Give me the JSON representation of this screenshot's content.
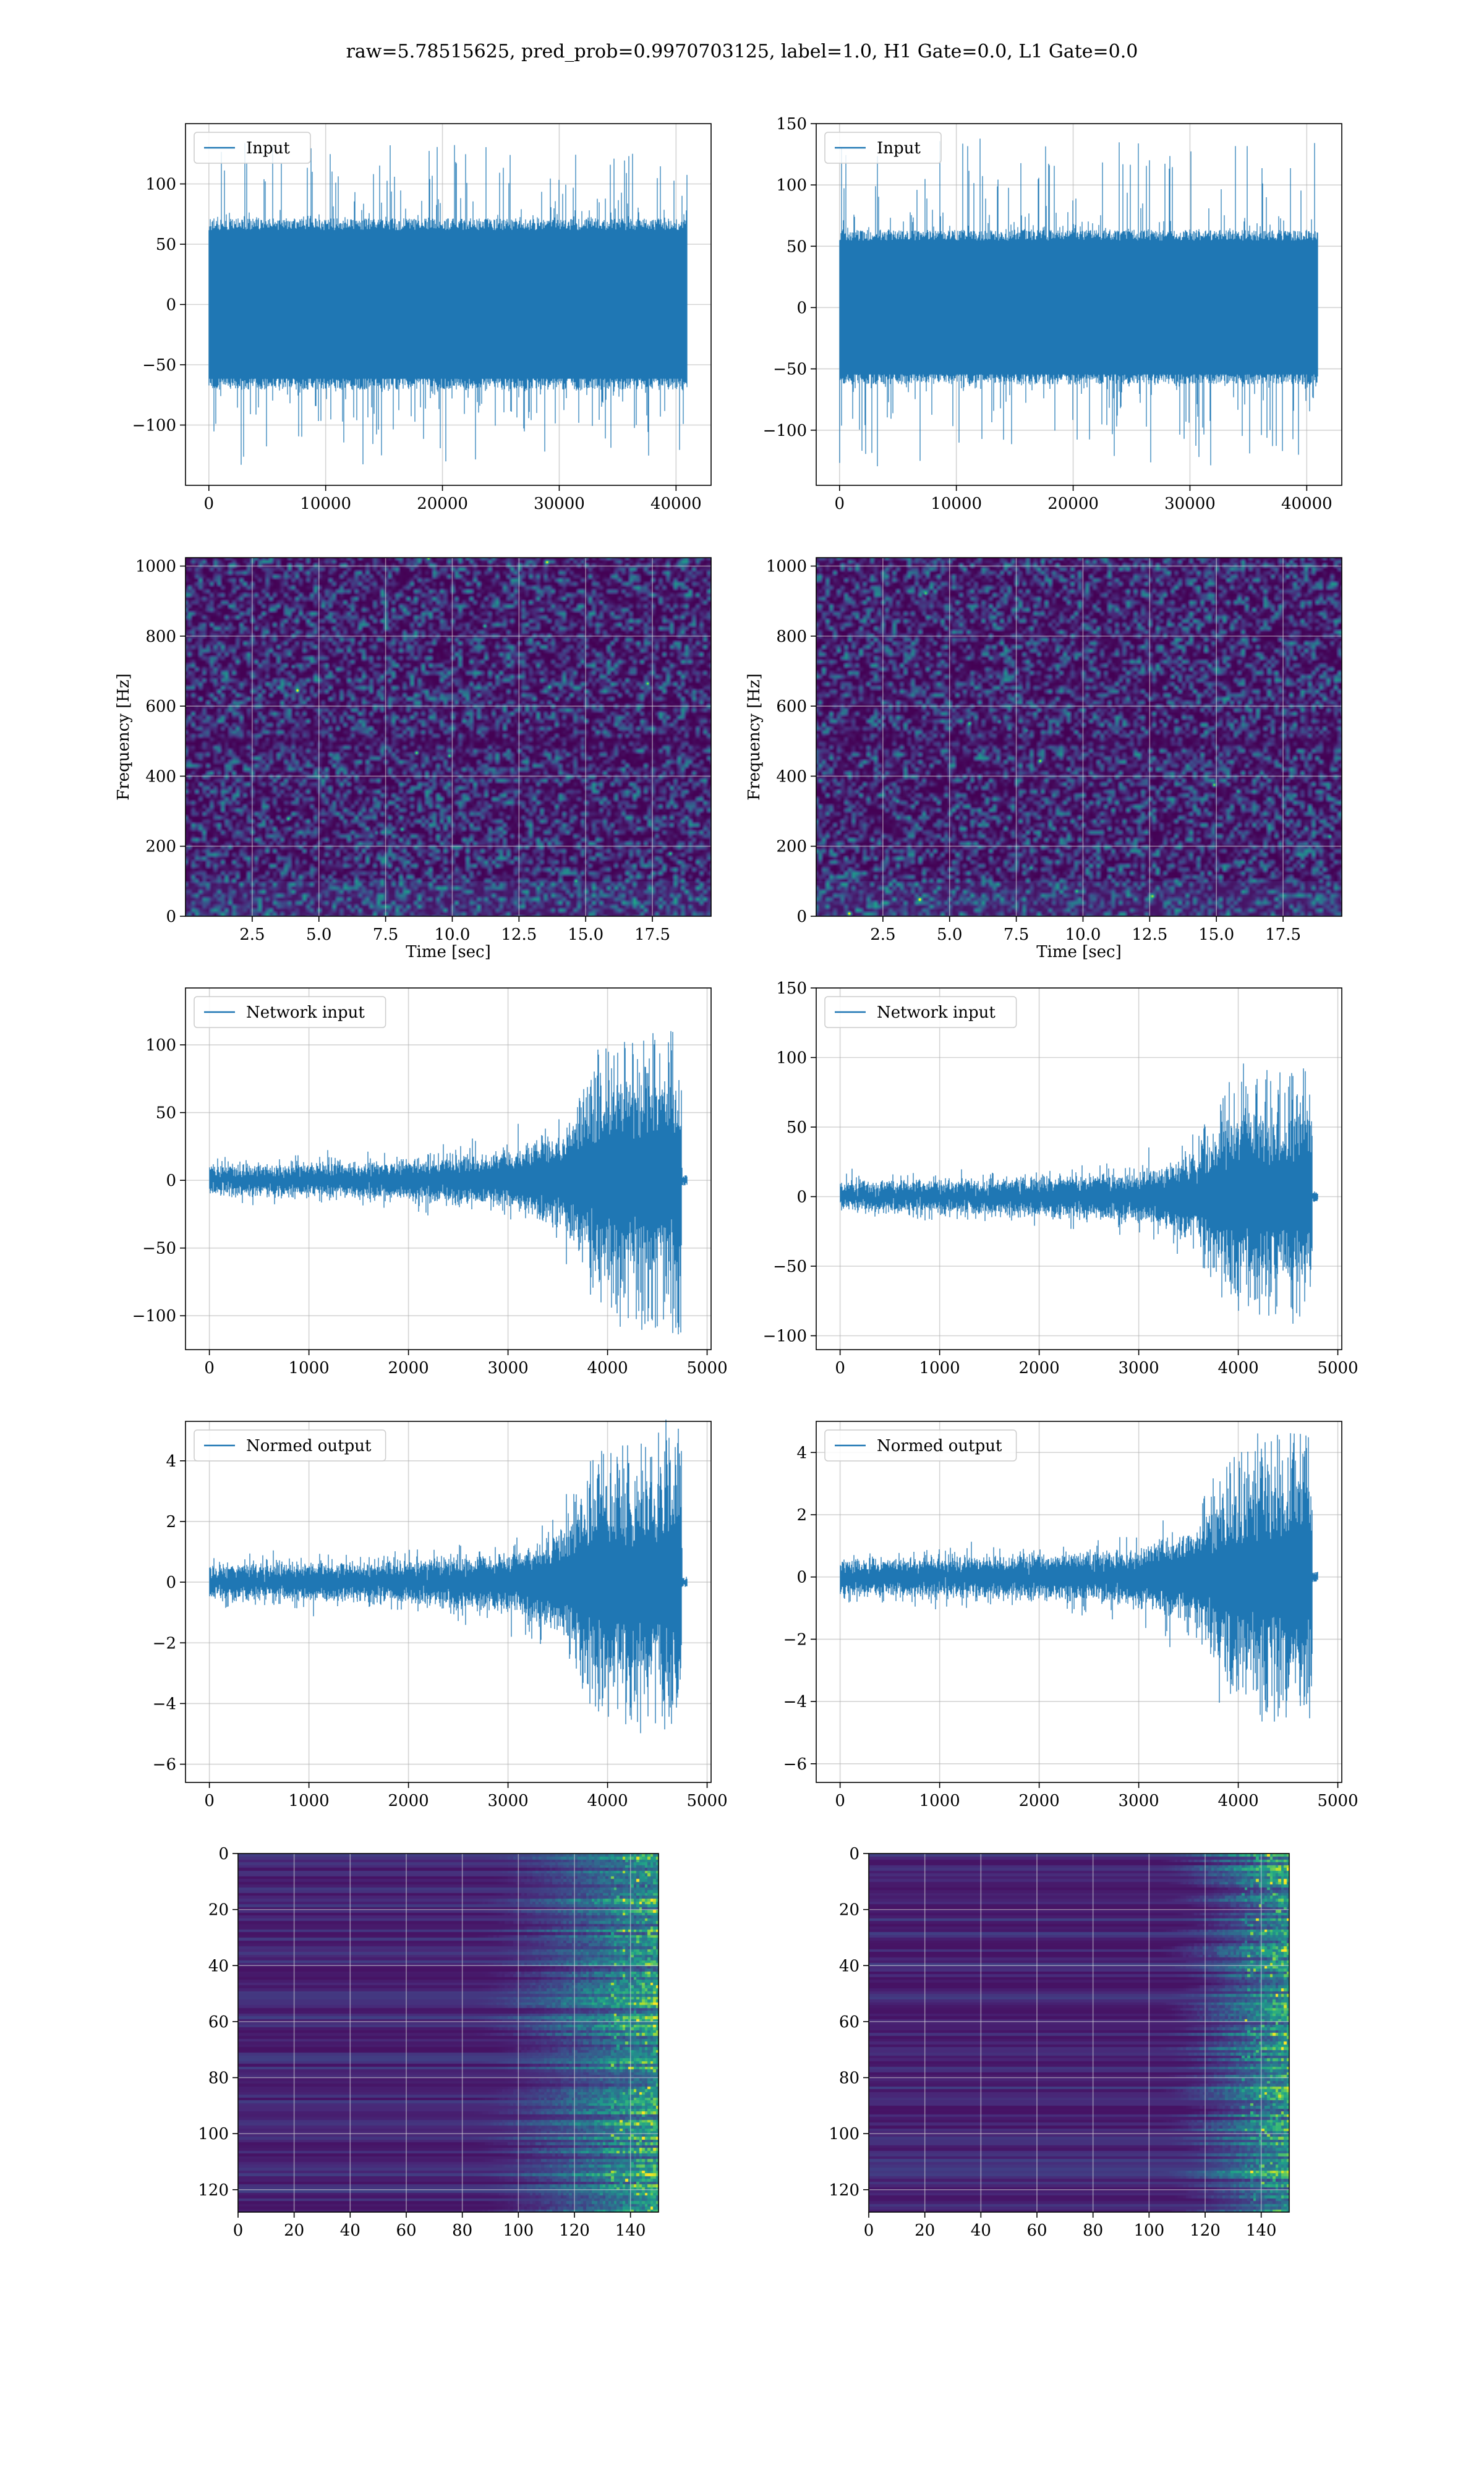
{
  "suptitle": "raw=5.78515625, pred_prob=0.9970703125, label=1.0, H1 Gate=0.0, L1 Gate=0.0",
  "colors": {
    "line": "#1f77b4",
    "grid": "#b0b0b0",
    "viridis": [
      "#440154",
      "#482878",
      "#3e4989",
      "#31688e",
      "#26828e",
      "#1f9e89",
      "#35b779",
      "#6ece58",
      "#b5de2b",
      "#fde725"
    ]
  },
  "chart_data": [
    {
      "id": "h1-input",
      "type": "line",
      "title": "",
      "xlabel": "",
      "ylabel": "",
      "xlim": [
        -2000,
        43000
      ],
      "ylim": [
        -150,
        150
      ],
      "xticks": [
        0,
        10000,
        20000,
        30000,
        40000
      ],
      "yticks": [
        -100,
        -50,
        0,
        50,
        100
      ],
      "grid": true,
      "legend_position": "upper-left",
      "series": [
        {
          "name": "Input",
          "length": 40960,
          "envelope_min": -135,
          "envelope_max": 135,
          "typical_amplitude": 70
        }
      ]
    },
    {
      "id": "l1-input",
      "type": "line",
      "title": "",
      "xlabel": "",
      "ylabel": "",
      "xlim": [
        -2000,
        43000
      ],
      "ylim": [
        -145,
        150
      ],
      "xticks": [
        0,
        10000,
        20000,
        30000,
        40000
      ],
      "yticks": [
        -100,
        -50,
        0,
        50,
        100,
        150
      ],
      "grid": true,
      "legend_position": "upper-left",
      "series": [
        {
          "name": "Input",
          "length": 40960,
          "envelope_min": -132,
          "envelope_max": 138,
          "typical_amplitude": 62
        }
      ]
    },
    {
      "id": "h1-spectrogram",
      "type": "heatmap",
      "title": "",
      "xlabel": "Time [sec]",
      "ylabel": "Frequency [Hz]",
      "xlim": [
        0,
        19.7
      ],
      "ylim": [
        0,
        1024
      ],
      "xticks": [
        2.5,
        5.0,
        7.5,
        10.0,
        12.5,
        15.0,
        17.5
      ],
      "yticks": [
        0,
        200,
        400,
        600,
        800,
        1000
      ],
      "grid": true,
      "colormap": "viridis",
      "dark_band_hz": 500
    },
    {
      "id": "l1-spectrogram",
      "type": "heatmap",
      "title": "",
      "xlabel": "Time [sec]",
      "ylabel": "Frequency [Hz]",
      "xlim": [
        0,
        19.7
      ],
      "ylim": [
        0,
        1024
      ],
      "xticks": [
        2.5,
        5.0,
        7.5,
        10.0,
        12.5,
        15.0,
        17.5
      ],
      "yticks": [
        0,
        200,
        400,
        600,
        800,
        1000
      ],
      "grid": true,
      "colormap": "viridis",
      "dark_band_hz": 500
    },
    {
      "id": "h1-network-input",
      "type": "line",
      "title": "",
      "xlabel": "",
      "ylabel": "",
      "xlim": [
        -240,
        5040
      ],
      "ylim": [
        -125,
        142
      ],
      "xticks": [
        0,
        1000,
        2000,
        3000,
        4000,
        5000
      ],
      "yticks": [
        -100,
        -50,
        0,
        50,
        100
      ],
      "grid": true,
      "legend_position": "upper-left",
      "series": [
        {
          "name": "Network input",
          "length": 4800,
          "signal_end": 4740,
          "envelope": [
            [
              0,
              14
            ],
            [
              1500,
              17
            ],
            [
              3000,
              28
            ],
            [
              3600,
              52
            ],
            [
              3900,
              85
            ],
            [
              4200,
              95
            ],
            [
              4500,
              100
            ],
            [
              4740,
              112
            ]
          ],
          "peak_max": 132,
          "peak_min": -113
        }
      ]
    },
    {
      "id": "l1-network-input",
      "type": "line",
      "title": "",
      "xlabel": "",
      "ylabel": "",
      "xlim": [
        -240,
        5040
      ],
      "ylim": [
        -110,
        150
      ],
      "xticks": [
        0,
        1000,
        2000,
        3000,
        4000,
        5000
      ],
      "yticks": [
        -100,
        -50,
        0,
        50,
        100,
        150
      ],
      "grid": true,
      "legend_position": "upper-left",
      "series": [
        {
          "name": "Network input",
          "length": 4800,
          "signal_end": 4740,
          "envelope": [
            [
              0,
              14
            ],
            [
              1500,
              17
            ],
            [
              3000,
              24
            ],
            [
              3600,
              45
            ],
            [
              3900,
              72
            ],
            [
              4200,
              80
            ],
            [
              4500,
              82
            ],
            [
              4740,
              85
            ]
          ],
          "peak_max": 138,
          "peak_min": -97
        }
      ]
    },
    {
      "id": "h1-normed-output",
      "type": "line",
      "title": "",
      "xlabel": "",
      "ylabel": "",
      "xlim": [
        -240,
        5040
      ],
      "ylim": [
        -6.6,
        5.3
      ],
      "xticks": [
        0,
        1000,
        2000,
        3000,
        4000,
        5000
      ],
      "yticks": [
        -6,
        -4,
        -2,
        0,
        2,
        4
      ],
      "grid": true,
      "legend_position": "upper-left",
      "series": [
        {
          "name": "Normed output",
          "length": 4800,
          "signal_end": 4740,
          "envelope": [
            [
              0,
              0.75
            ],
            [
              1500,
              0.85
            ],
            [
              3000,
              1.3
            ],
            [
              3600,
              2.5
            ],
            [
              3900,
              4.0
            ],
            [
              4200,
              4.3
            ],
            [
              4500,
              4.6
            ],
            [
              4740,
              5.0
            ]
          ],
          "peak_max": 5.2,
          "peak_min": -6.0
        }
      ]
    },
    {
      "id": "l1-normed-output",
      "type": "line",
      "title": "",
      "xlabel": "",
      "ylabel": "",
      "xlim": [
        -240,
        5040
      ],
      "ylim": [
        -6.6,
        5.0
      ],
      "xticks": [
        0,
        1000,
        2000,
        3000,
        4000,
        5000
      ],
      "yticks": [
        -6,
        -4,
        -2,
        0,
        2,
        4
      ],
      "grid": true,
      "legend_position": "upper-left",
      "series": [
        {
          "name": "Normed output",
          "length": 4800,
          "signal_end": 4740,
          "envelope": [
            [
              0,
              0.8
            ],
            [
              1500,
              0.9
            ],
            [
              3000,
              1.2
            ],
            [
              3600,
              2.2
            ],
            [
              3900,
              3.6
            ],
            [
              4200,
              4.0
            ],
            [
              4500,
              4.3
            ],
            [
              4740,
              4.6
            ]
          ],
          "peak_max": 4.8,
          "peak_min": -6.2
        }
      ]
    },
    {
      "id": "h1-feature-map",
      "type": "heatmap",
      "title": "",
      "xlabel": "",
      "ylabel": "",
      "xlim": [
        0,
        150
      ],
      "ylim": [
        128,
        0
      ],
      "xticks": [
        0,
        20,
        40,
        60,
        80,
        100,
        120,
        140
      ],
      "yticks": [
        0,
        20,
        40,
        60,
        80,
        100,
        120
      ],
      "grid": true,
      "colormap": "viridis",
      "rows": 128,
      "cols": 150,
      "activity_onset": 100
    },
    {
      "id": "l1-feature-map",
      "type": "heatmap",
      "title": "",
      "xlabel": "",
      "ylabel": "",
      "xlim": [
        0,
        150
      ],
      "ylim": [
        128,
        0
      ],
      "xticks": [
        0,
        20,
        40,
        60,
        80,
        100,
        120,
        140
      ],
      "yticks": [
        0,
        20,
        40,
        60,
        80,
        100,
        120
      ],
      "grid": true,
      "colormap": "viridis",
      "rows": 128,
      "cols": 150,
      "activity_onset": 120
    }
  ]
}
